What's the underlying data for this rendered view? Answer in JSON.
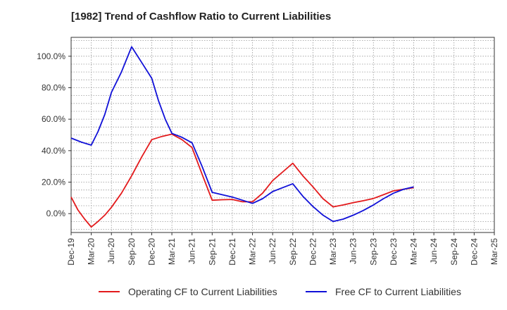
{
  "chart_data": {
    "type": "line",
    "title": "[1982]  Trend of Cashflow Ratio to Current Liabilities",
    "xlabel": "",
    "ylabel": "",
    "ylim": [
      -12,
      112
    ],
    "y_ticks": [
      0,
      20,
      40,
      60,
      80,
      100
    ],
    "y_tick_labels": [
      "0.0%",
      "20.0%",
      "40.0%",
      "60.0%",
      "80.0%",
      "100.0%"
    ],
    "x_tick_labels": [
      "Dec-19",
      "Mar-20",
      "Jun-20",
      "Sep-20",
      "Dec-20",
      "Mar-21",
      "Jun-21",
      "Sep-21",
      "Dec-21",
      "Mar-22",
      "Jun-22",
      "Sep-22",
      "Dec-22",
      "Mar-23",
      "Jun-23",
      "Sep-23",
      "Dec-23",
      "Mar-24",
      "Jun-24",
      "Sep-24",
      "Dec-24",
      "Mar-25"
    ],
    "grid": true,
    "legend_position": "bottom",
    "series": [
      {
        "name": "Operating CF to Current Liabilities",
        "color": "#e31a1c",
        "x": [
          0,
          0.33,
          0.67,
          1,
          1.33,
          1.67,
          2,
          2.5,
          3,
          3.5,
          4,
          4.5,
          5,
          5.5,
          6,
          6.5,
          7,
          7.5,
          8,
          8.5,
          9,
          9.5,
          10,
          10.5,
          11,
          11.5,
          12,
          12.5,
          13,
          13.5,
          14,
          14.5,
          15,
          15.5,
          16,
          16.5,
          17
        ],
        "values": [
          10.5,
          2.5,
          -3.5,
          -8.5,
          -5,
          -1,
          4,
          13,
          24,
          36,
          47,
          49,
          50.5,
          47,
          42,
          25,
          8.5,
          8.8,
          9,
          7.5,
          7.5,
          13,
          21,
          26.5,
          32,
          24,
          17,
          9.5,
          4.3,
          5.5,
          7,
          8.2,
          9.6,
          12,
          14.5,
          15.5,
          16.5
        ]
      },
      {
        "name": "Free CF to Current Liabilities",
        "color": "#1010d8",
        "x": [
          0,
          0.5,
          1,
          1.33,
          1.67,
          2,
          2.5,
          3,
          3.5,
          4,
          4.33,
          4.67,
          5,
          5.5,
          6,
          6.5,
          7,
          7.5,
          8,
          8.5,
          9,
          9.5,
          10,
          10.5,
          11,
          11.5,
          12,
          12.5,
          13,
          13.5,
          14,
          14.5,
          15,
          15.5,
          16,
          16.5,
          17
        ],
        "values": [
          48,
          45.5,
          43.5,
          52,
          63,
          77,
          90,
          106,
          96,
          86,
          72,
          60,
          51,
          48.5,
          45,
          30,
          13.5,
          12,
          10.5,
          8.5,
          6.5,
          9.5,
          14,
          16.5,
          19,
          11,
          4.5,
          -1,
          -5,
          -3.5,
          -1,
          2,
          5.5,
          9.5,
          13,
          15.5,
          17
        ]
      }
    ]
  }
}
